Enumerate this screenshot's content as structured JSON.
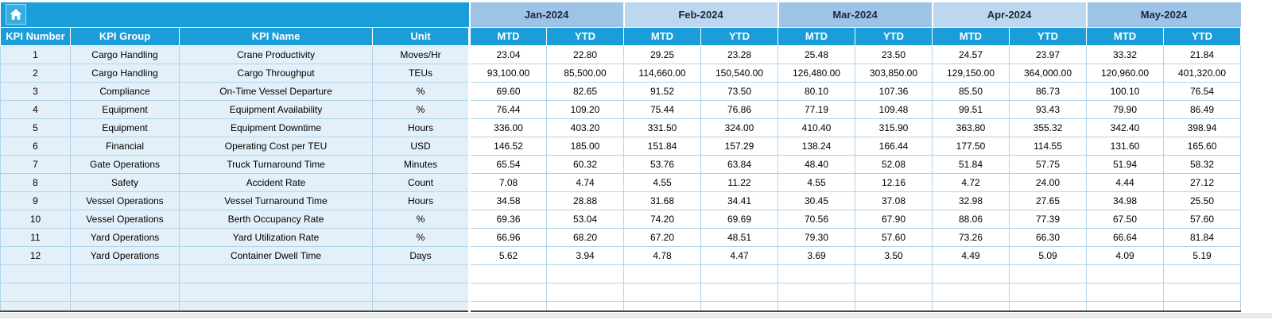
{
  "colors": {
    "teal": "#1B9DD9",
    "month_dark": "#9DC3E6",
    "month_light": "#BDD7EE",
    "left_tint": "#E4F0F9",
    "grid": "#AFD3EA",
    "month_text": "#1B2A41"
  },
  "table": {
    "columns": [
      "KPI Number",
      "KPI Group",
      "KPI Name",
      "Unit"
    ],
    "months": [
      "Jan-2024",
      "Feb-2024",
      "Mar-2024",
      "Apr-2024",
      "May-2024"
    ],
    "sub_headers": [
      "MTD",
      "YTD"
    ],
    "rows": [
      {
        "number": "1",
        "group": "Cargo Handling",
        "name": "Crane Productivity",
        "unit": "Moves/Hr",
        "values": [
          "23.04",
          "22.80",
          "29.25",
          "23.28",
          "25.48",
          "23.50",
          "24.57",
          "23.97",
          "33.32",
          "21.84"
        ]
      },
      {
        "number": "2",
        "group": "Cargo Handling",
        "name": "Cargo Throughput",
        "unit": "TEUs",
        "values": [
          "93,100.00",
          "85,500.00",
          "114,660.00",
          "150,540.00",
          "126,480.00",
          "303,850.00",
          "129,150.00",
          "364,000.00",
          "120,960.00",
          "401,320.00"
        ]
      },
      {
        "number": "3",
        "group": "Compliance",
        "name": "On-Time Vessel Departure",
        "unit": "%",
        "values": [
          "69.60",
          "82.65",
          "91.52",
          "73.50",
          "80.10",
          "107.36",
          "85.50",
          "86.73",
          "100.10",
          "76.54"
        ]
      },
      {
        "number": "4",
        "group": "Equipment",
        "name": "Equipment Availability",
        "unit": "%",
        "values": [
          "76.44",
          "109.20",
          "75.44",
          "76.86",
          "77.19",
          "109.48",
          "99.51",
          "93.43",
          "79.90",
          "86.49"
        ]
      },
      {
        "number": "5",
        "group": "Equipment",
        "name": "Equipment Downtime",
        "unit": "Hours",
        "values": [
          "336.00",
          "403.20",
          "331.50",
          "324.00",
          "410.40",
          "315.90",
          "363.80",
          "355.32",
          "342.40",
          "398.94"
        ]
      },
      {
        "number": "6",
        "group": "Financial",
        "name": "Operating Cost per TEU",
        "unit": "USD",
        "values": [
          "146.52",
          "185.00",
          "151.84",
          "157.29",
          "138.24",
          "166.44",
          "177.50",
          "114.55",
          "131.60",
          "165.60"
        ]
      },
      {
        "number": "7",
        "group": "Gate Operations",
        "name": "Truck Turnaround Time",
        "unit": "Minutes",
        "values": [
          "65.54",
          "60.32",
          "53.76",
          "63.84",
          "48.40",
          "52.08",
          "51.84",
          "57.75",
          "51.94",
          "58.32"
        ]
      },
      {
        "number": "8",
        "group": "Safety",
        "name": "Accident Rate",
        "unit": "Count",
        "values": [
          "7.08",
          "4.74",
          "4.55",
          "11.22",
          "4.55",
          "12.16",
          "4.72",
          "24.00",
          "4.44",
          "27.12"
        ]
      },
      {
        "number": "9",
        "group": "Vessel Operations",
        "name": "Vessel Turnaround Time",
        "unit": "Hours",
        "values": [
          "34.58",
          "28.88",
          "31.68",
          "34.41",
          "30.45",
          "37.08",
          "32.98",
          "27.65",
          "34.98",
          "25.50"
        ]
      },
      {
        "number": "10",
        "group": "Vessel Operations",
        "name": "Berth Occupancy Rate",
        "unit": "%",
        "values": [
          "69.36",
          "53.04",
          "74.20",
          "69.69",
          "70.56",
          "67.90",
          "88.06",
          "77.39",
          "67.50",
          "57.60"
        ]
      },
      {
        "number": "11",
        "group": "Yard Operations",
        "name": "Yard Utilization Rate",
        "unit": "%",
        "values": [
          "66.96",
          "68.20",
          "67.20",
          "48.51",
          "79.30",
          "57.60",
          "73.26",
          "66.30",
          "66.64",
          "81.84"
        ]
      },
      {
        "number": "12",
        "group": "Yard Operations",
        "name": "Container Dwell Time",
        "unit": "Days",
        "values": [
          "5.62",
          "3.94",
          "4.78",
          "4.47",
          "3.69",
          "3.50",
          "4.49",
          "5.09",
          "4.09",
          "5.19"
        ]
      }
    ]
  }
}
